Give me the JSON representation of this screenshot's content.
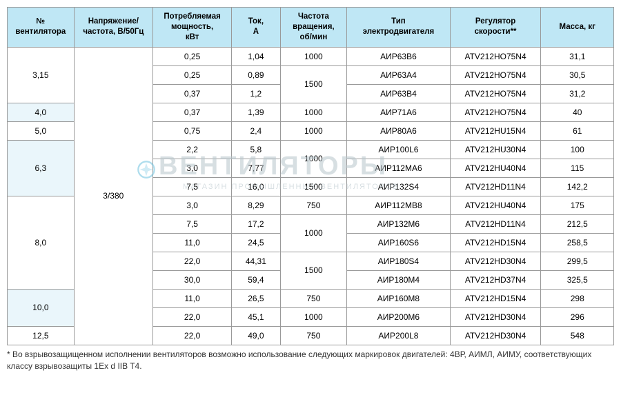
{
  "watermark": {
    "main": "ВЕНТИЛЯТОРЫ",
    "sub": "МАГАЗИН ПРОМЫШЛЕННЫХ ВЕНТИЛЯТОРОВ"
  },
  "table": {
    "headers": [
      "№\nвентилятора",
      "Напряжение/\nчастота, В/50Гц",
      "Потребляемая\nмощность,\nкВт",
      "Ток,\nА",
      "Частота\nвращения,\nоб/мин",
      "Тип\nэлектродвигателя",
      "Регулятор\nскорости**",
      "Масса, кг"
    ],
    "voltage": "3/380",
    "groups": [
      {
        "fan": "3,15",
        "zebra": false,
        "rows": [
          {
            "power": "0,25",
            "current": "1,04",
            "rpm": "1000",
            "rpm_span": 1,
            "motor": "АИР63В6",
            "regulator": "ATV212HO75N4",
            "mass": "31,1"
          },
          {
            "power": "0,25",
            "current": "0,89",
            "rpm": "1500",
            "rpm_span": 2,
            "motor": "АИР63А4",
            "regulator": "ATV212HO75N4",
            "mass": "30,5"
          },
          {
            "power": "0,37",
            "current": "1,2",
            "rpm": null,
            "rpm_span": 0,
            "motor": "АИР63В4",
            "regulator": "ATV212HO75N4",
            "mass": "31,2"
          }
        ]
      },
      {
        "fan": "4,0",
        "zebra": true,
        "rows": [
          {
            "power": "0,37",
            "current": "1,39",
            "rpm": "1000",
            "rpm_span": 1,
            "motor": "АИР71А6",
            "regulator": "ATV212HO75N4",
            "mass": "40"
          }
        ]
      },
      {
        "fan": "5,0",
        "zebra": false,
        "rows": [
          {
            "power": "0,75",
            "current": "2,4",
            "rpm": "1000",
            "rpm_span": 1,
            "motor": "АИР80А6",
            "regulator": "ATV212HU15N4",
            "mass": "61"
          }
        ]
      },
      {
        "fan": "6,3",
        "zebra": true,
        "rows": [
          {
            "power": "2,2",
            "current": "5,8",
            "rpm": "1000",
            "rpm_span": 2,
            "motor": "АИР100L6",
            "regulator": "ATV212HU30N4",
            "mass": "100"
          },
          {
            "power": "3,0",
            "current": "7,77",
            "rpm": null,
            "rpm_span": 0,
            "motor": "АИР112МА6",
            "regulator": "ATV212HU40N4",
            "mass": "115"
          },
          {
            "power": "7,5",
            "current": "16,0",
            "rpm": "1500",
            "rpm_span": 1,
            "motor": "АИР132S4",
            "regulator": "ATV212HD11N4",
            "mass": "142,2"
          }
        ]
      },
      {
        "fan": "8,0",
        "zebra": false,
        "rows": [
          {
            "power": "3,0",
            "current": "8,29",
            "rpm": "750",
            "rpm_span": 1,
            "motor": "АИР112МВ8",
            "regulator": "ATV212HU40N4",
            "mass": "175"
          },
          {
            "power": "7,5",
            "current": "17,2",
            "rpm": "1000",
            "rpm_span": 2,
            "motor": "АИР132М6",
            "regulator": "ATV212HD11N4",
            "mass": "212,5"
          },
          {
            "power": "11,0",
            "current": "24,5",
            "rpm": null,
            "rpm_span": 0,
            "motor": "АИР160S6",
            "regulator": "ATV212HD15N4",
            "mass": "258,5"
          },
          {
            "power": "22,0",
            "current": "44,31",
            "rpm": "1500",
            "rpm_span": 2,
            "motor": "АИР180S4",
            "regulator": "ATV212HD30N4",
            "mass": "299,5"
          },
          {
            "power": "30,0",
            "current": "59,4",
            "rpm": null,
            "rpm_span": 0,
            "motor": "АИР180М4",
            "regulator": "ATV212HD37N4",
            "mass": "325,5"
          }
        ]
      },
      {
        "fan": "10,0",
        "zebra": true,
        "rows": [
          {
            "power": "11,0",
            "current": "26,5",
            "rpm": "750",
            "rpm_span": 1,
            "motor": "АИР160М8",
            "regulator": "ATV212HD15N4",
            "mass": "298"
          },
          {
            "power": "22,0",
            "current": "45,1",
            "rpm": "1000",
            "rpm_span": 1,
            "motor": "АИР200М6",
            "regulator": "ATV212HD30N4",
            "mass": "296"
          }
        ]
      },
      {
        "fan": "12,5",
        "zebra": false,
        "rows": [
          {
            "power": "22,0",
            "current": "49,0",
            "rpm": "750",
            "rpm_span": 1,
            "motor": "АИР200L8",
            "regulator": "ATV212HD30N4",
            "mass": "548"
          }
        ]
      }
    ]
  },
  "footnote": "* Во взрывозащищенном исполнении вентиляторов возможно использование следующих маркировок двигателей: 4ВР, АИМЛ, АИМУ, соответствующих классу взрывозащиты 1Ex d IIB T4.",
  "colors": {
    "header_bg": "#bfe7f5",
    "zebra_bg": "#eaf6fb",
    "border": "#999999",
    "watermark": "#b8c5cc"
  },
  "col_widths": [
    "11%",
    "13%",
    "13%",
    "8%",
    "11%",
    "17%",
    "15%",
    "12%"
  ]
}
